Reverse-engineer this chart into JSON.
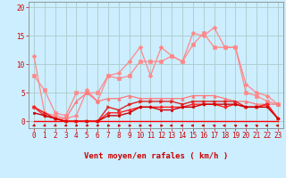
{
  "title": "",
  "xlabel": "Vent moyen/en rafales ( km/h )",
  "background_color": "#cceeff",
  "grid_color": "#aacccc",
  "x": [
    0,
    1,
    2,
    3,
    4,
    5,
    6,
    7,
    8,
    9,
    10,
    11,
    12,
    13,
    14,
    15,
    16,
    17,
    18,
    19,
    20,
    21,
    22,
    23
  ],
  "ylim": [
    -1.2,
    21.0
  ],
  "xlim": [
    -0.5,
    23.5
  ],
  "yticks": [
    0,
    5,
    10,
    15,
    20
  ],
  "series": [
    {
      "y": [
        11.5,
        1.5,
        1.0,
        0.5,
        1.0,
        5.5,
        3.5,
        8.0,
        8.5,
        10.5,
        13.0,
        8.0,
        13.0,
        11.5,
        10.5,
        15.5,
        15.0,
        16.5,
        13.0,
        13.0,
        6.5,
        5.0,
        4.5,
        3.0
      ],
      "color": "#ff8888",
      "lw": 0.9,
      "marker": "D",
      "ms": 2.5
    },
    {
      "y": [
        8.0,
        5.5,
        1.5,
        1.0,
        5.0,
        5.0,
        5.0,
        8.0,
        7.5,
        8.0,
        10.5,
        10.5,
        10.5,
        11.5,
        10.5,
        13.5,
        15.5,
        13.0,
        13.0,
        13.0,
        5.0,
        4.5,
        3.5,
        3.0
      ],
      "color": "#ff8888",
      "lw": 0.9,
      "marker": "s",
      "ms": 2.5
    },
    {
      "y": [
        2.5,
        1.5,
        0.5,
        0.5,
        3.5,
        5.0,
        3.5,
        4.0,
        4.0,
        4.5,
        4.0,
        4.0,
        4.0,
        4.0,
        4.0,
        4.5,
        4.5,
        4.5,
        4.0,
        3.5,
        3.5,
        3.0,
        3.0,
        3.0
      ],
      "color": "#ff7777",
      "lw": 0.9,
      "marker": "^",
      "ms": 2.5
    },
    {
      "y": [
        2.5,
        1.5,
        0.5,
        0.0,
        0.0,
        0.0,
        0.0,
        2.5,
        2.0,
        3.0,
        3.5,
        3.5,
        3.5,
        3.5,
        3.0,
        3.5,
        3.5,
        3.5,
        3.5,
        3.5,
        2.5,
        2.5,
        3.0,
        0.5
      ],
      "color": "#dd2222",
      "lw": 1.0,
      "marker": ">",
      "ms": 2.5
    },
    {
      "y": [
        2.5,
        1.0,
        0.5,
        0.0,
        0.0,
        0.0,
        0.0,
        1.5,
        1.5,
        2.0,
        2.5,
        2.5,
        2.5,
        2.5,
        2.5,
        3.0,
        3.0,
        3.0,
        2.5,
        3.0,
        2.5,
        2.5,
        3.0,
        0.5
      ],
      "color": "#ff2222",
      "lw": 1.0,
      "marker": "D",
      "ms": 2.0
    },
    {
      "y": [
        1.5,
        1.0,
        0.5,
        0.0,
        0.0,
        0.0,
        0.0,
        1.0,
        1.0,
        1.5,
        2.5,
        2.5,
        2.0,
        2.0,
        2.5,
        2.5,
        3.0,
        3.0,
        3.0,
        3.0,
        2.5,
        2.5,
        2.5,
        0.5
      ],
      "color": "#cc0000",
      "lw": 1.0,
      "marker": "s",
      "ms": 2.0
    },
    {
      "y": [
        0.0,
        0.0,
        0.0,
        0.0,
        0.0,
        0.0,
        0.0,
        0.0,
        0.0,
        0.0,
        0.0,
        0.0,
        0.0,
        0.0,
        0.0,
        0.0,
        0.0,
        0.0,
        0.0,
        0.0,
        0.0,
        0.0,
        0.0,
        0.0
      ],
      "color": "#ff0000",
      "lw": 1.0,
      "marker": null,
      "ms": 0
    }
  ],
  "arrow_angles": [
    225,
    225,
    225,
    225,
    225,
    225,
    225,
    90,
    90,
    90,
    90,
    270,
    90,
    270,
    270,
    270,
    270,
    315,
    270,
    315,
    315,
    315,
    270,
    270
  ]
}
